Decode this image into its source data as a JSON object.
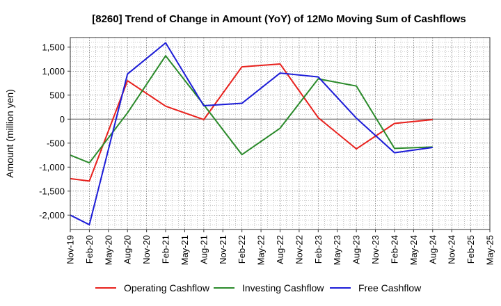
{
  "chart_data": {
    "type": "line",
    "title": "[8260]  Trend of Change in Amount (YoY) of 12Mo Moving Sum of Cashflows",
    "xlabel": "",
    "ylabel": "Amount (million yen)",
    "ylim": [
      -2300,
      1700
    ],
    "yticks": [
      -2000,
      -1500,
      -1000,
      -500,
      0,
      500,
      1000,
      1500
    ],
    "ytick_labels": [
      "-2,000",
      "-1,500",
      "-1,000",
      "-500",
      "0",
      "500",
      "1,000",
      "1,500"
    ],
    "categories": [
      "Nov-19",
      "Feb-20",
      "May-20",
      "Aug-20",
      "Nov-20",
      "Feb-21",
      "May-21",
      "Aug-21",
      "Nov-21",
      "Feb-22",
      "May-22",
      "Aug-22",
      "Nov-22",
      "Feb-23",
      "May-23",
      "Aug-23",
      "Nov-23",
      "Feb-24",
      "May-24",
      "Aug-24",
      "Nov-24",
      "Feb-25",
      "May-25"
    ],
    "grid": true,
    "legend_position": "bottom",
    "series": [
      {
        "name": "Operating Cashflow",
        "color": "#e8201c",
        "points": [
          [
            0,
            -1240
          ],
          [
            1,
            -1290
          ],
          [
            3,
            800
          ],
          [
            5,
            270
          ],
          [
            7,
            -10
          ],
          [
            9,
            1090
          ],
          [
            11,
            1150
          ],
          [
            13,
            30
          ],
          [
            15,
            -620
          ],
          [
            17,
            -90
          ],
          [
            19,
            -10
          ]
        ]
      },
      {
        "name": "Investing Cashflow",
        "color": "#2a8a2a",
        "points": [
          [
            0,
            -750
          ],
          [
            1,
            -910
          ],
          [
            3,
            130
          ],
          [
            5,
            1320
          ],
          [
            7,
            300
          ],
          [
            9,
            -740
          ],
          [
            11,
            -190
          ],
          [
            13,
            840
          ],
          [
            15,
            690
          ],
          [
            17,
            -610
          ],
          [
            19,
            -580
          ]
        ]
      },
      {
        "name": "Free Cashflow",
        "color": "#1c1cd8",
        "points": [
          [
            0,
            -2000
          ],
          [
            1,
            -2200
          ],
          [
            3,
            940
          ],
          [
            5,
            1590
          ],
          [
            7,
            280
          ],
          [
            9,
            330
          ],
          [
            11,
            960
          ],
          [
            13,
            880
          ],
          [
            15,
            20
          ],
          [
            17,
            -700
          ],
          [
            19,
            -590
          ]
        ]
      }
    ]
  }
}
